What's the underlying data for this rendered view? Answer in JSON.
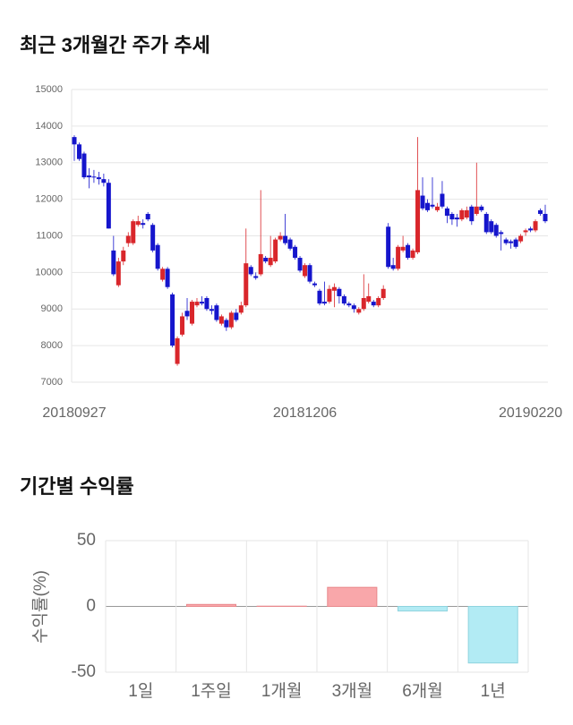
{
  "chart_data": [
    {
      "type": "candlestick",
      "title": "최근 3개월간 주가 추세",
      "categories": [
        "20180927",
        null,
        null,
        null,
        null,
        null,
        null,
        null,
        null,
        null,
        null,
        null,
        null,
        null,
        null,
        null,
        null,
        null,
        null,
        null,
        null,
        null,
        null,
        null,
        null,
        null,
        null,
        null,
        null,
        null,
        null,
        null,
        null,
        null,
        null,
        null,
        null,
        null,
        null,
        null,
        null,
        null,
        null,
        null,
        null,
        null,
        null,
        "20181206",
        null,
        null,
        null,
        null,
        null,
        null,
        null,
        null,
        null,
        null,
        null,
        null,
        null,
        null,
        null,
        null,
        null,
        null,
        null,
        null,
        null,
        null,
        null,
        null,
        null,
        null,
        null,
        null,
        null,
        null,
        null,
        null,
        null,
        null,
        null,
        null,
        null,
        null,
        null,
        null,
        null,
        null,
        null,
        null,
        null,
        "20190220",
        null,
        null,
        null
      ],
      "open": [
        13700,
        13500,
        13250,
        12650,
        12620,
        12600,
        12550,
        12450,
        10600,
        9650,
        10300,
        10800,
        10800,
        11300,
        11350,
        11600,
        11300,
        10750,
        9800,
        10100,
        9400,
        7500,
        8300,
        8950,
        8600,
        9100,
        9200,
        9300,
        9000,
        9100,
        8600,
        8700,
        8500,
        8900,
        8900,
        9100,
        10150,
        9900,
        9950,
        10400,
        10200,
        10300,
        10900,
        11000,
        10900,
        10700,
        10400,
        9900,
        10200,
        9700,
        9500,
        9200,
        9200,
        9500,
        9550,
        9350,
        9150,
        9100,
        8900,
        9000,
        9200,
        9200,
        9100,
        9300,
        11250,
        10200,
        10100,
        10600,
        10750,
        10400,
        10550,
        12100,
        11900,
        11850,
        11700,
        12150,
        11750,
        11600,
        11500,
        11450,
        11500,
        11800,
        11600,
        11800,
        11600,
        11400,
        11300,
        11100,
        10900,
        10850,
        10900,
        10850,
        11100,
        11200,
        11150,
        11700,
        11600
      ],
      "high": [
        13750,
        13550,
        13300,
        12850,
        12800,
        12750,
        12700,
        12550,
        11000,
        10400,
        10700,
        11100,
        11450,
        11550,
        11450,
        11650,
        11350,
        10800,
        10150,
        10150,
        9450,
        8250,
        8900,
        9300,
        9250,
        9300,
        9350,
        9350,
        9100,
        9150,
        8850,
        8750,
        8950,
        9000,
        9200,
        11200,
        10200,
        10000,
        12250,
        10450,
        11000,
        10950,
        11100,
        11600,
        10950,
        10750,
        10450,
        10250,
        10250,
        9750,
        9550,
        9750,
        9650,
        9700,
        9600,
        9400,
        9200,
        9150,
        9050,
        9950,
        9700,
        9250,
        9350,
        9650,
        11350,
        10400,
        10750,
        11000,
        10800,
        10650,
        13700,
        12600,
        12000,
        12600,
        11900,
        12500,
        11800,
        11650,
        11600,
        11750,
        11800,
        11850,
        13000,
        11850,
        11650,
        11450,
        11350,
        11150,
        10950,
        10900,
        10950,
        11050,
        11200,
        11250,
        11450,
        11750,
        11850
      ],
      "low": [
        13050,
        13050,
        12550,
        12300,
        12450,
        12400,
        12350,
        11200,
        9900,
        9600,
        10200,
        10700,
        10750,
        11250,
        11200,
        11400,
        10550,
        10050,
        9750,
        9550,
        7950,
        7450,
        8250,
        8700,
        8550,
        9050,
        9100,
        8950,
        8850,
        8650,
        8550,
        8400,
        8450,
        8650,
        8850,
        9050,
        9900,
        9800,
        9900,
        10250,
        10150,
        10250,
        10850,
        10750,
        10600,
        10350,
        10000,
        9850,
        9700,
        9600,
        9100,
        9100,
        9150,
        9050,
        9150,
        9100,
        9050,
        8900,
        8850,
        8950,
        9150,
        9050,
        9050,
        9250,
        10100,
        10050,
        10050,
        10550,
        10350,
        10350,
        10500,
        11700,
        11650,
        11750,
        11650,
        11750,
        11350,
        11300,
        11250,
        11400,
        11450,
        11300,
        11550,
        11650,
        11050,
        11050,
        10950,
        10600,
        10750,
        10650,
        10650,
        10800,
        11000,
        11100,
        11100,
        11550,
        11350
      ],
      "close": [
        13500,
        13100,
        12600,
        12600,
        12600,
        12550,
        12450,
        11200,
        9950,
        10300,
        10600,
        11000,
        11400,
        11400,
        11300,
        11450,
        10600,
        10100,
        10100,
        9600,
        8000,
        8200,
        8800,
        8800,
        9200,
        9200,
        9150,
        9000,
        8950,
        8700,
        8800,
        8500,
        8900,
        8700,
        9100,
        10250,
        9950,
        9850,
        10500,
        10300,
        10400,
        10900,
        11000,
        10800,
        10650,
        10400,
        10050,
        10200,
        9750,
        9650,
        9150,
        9150,
        9550,
        9600,
        9350,
        9150,
        9100,
        9000,
        9000,
        9300,
        9350,
        9100,
        9300,
        9550,
        10150,
        10100,
        10700,
        10700,
        10400,
        10600,
        12250,
        11750,
        11700,
        11800,
        11800,
        11800,
        11550,
        11450,
        11450,
        11700,
        11700,
        11400,
        11800,
        11700,
        11100,
        11100,
        11000,
        11050,
        10800,
        10800,
        10700,
        11000,
        11150,
        11150,
        11400,
        11600,
        11400
      ],
      "up_color": "#d9262b",
      "down_color": "#1515cc",
      "ylim": [
        7000,
        15000
      ],
      "yticks": [
        7000,
        8000,
        9000,
        10000,
        11000,
        12000,
        13000,
        14000,
        15000
      ],
      "grid": true
    },
    {
      "type": "bar",
      "title": "기간별 수익률",
      "ylabel": "수익률(%)",
      "categories": [
        "1일",
        "1주일",
        "1개월",
        "3개월",
        "6개월",
        "1년"
      ],
      "values": [
        0,
        1.5,
        0.2,
        14.5,
        -3.5,
        -43
      ],
      "positive_color": "#f9a7aa",
      "negative_color": "#b2ebf4",
      "ylim": [
        -50,
        50
      ],
      "yticks": [
        -50,
        0,
        50
      ],
      "grid": true
    }
  ]
}
